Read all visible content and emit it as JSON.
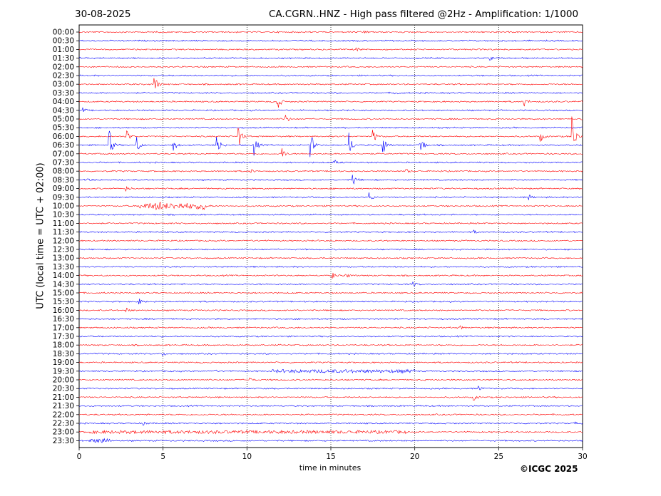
{
  "header": {
    "date": "30-08-2025",
    "title": "CA.CGRN..HNZ - High pass filtered @2Hz - Amplification: 1/1000"
  },
  "footer": {
    "copyright": "©ICGC 2025"
  },
  "chart_data": {
    "type": "line",
    "title": "CA.CGRN..HNZ - High pass filtered @2Hz - Amplification: 1/1000",
    "xlabel": "time in minutes",
    "ylabel": "UTC (local time = UTC + 02:00)",
    "xlim": [
      0,
      30
    ],
    "xticks": [
      0,
      5,
      10,
      15,
      20,
      25,
      30
    ],
    "vertical_dotted_gridlines_at": [
      5,
      10,
      15,
      20,
      25
    ],
    "colors": {
      "red": "#ff0000",
      "blue": "#0000ff"
    },
    "trace_color_order": [
      "red",
      "blue"
    ],
    "rows": [
      "00:00",
      "00:30",
      "01:00",
      "01:30",
      "02:00",
      "02:30",
      "03:00",
      "03:30",
      "04:00",
      "04:30",
      "05:00",
      "05:30",
      "06:00",
      "06:30",
      "07:00",
      "07:30",
      "08:00",
      "08:30",
      "09:00",
      "09:30",
      "10:00",
      "10:30",
      "11:00",
      "11:30",
      "12:00",
      "12:30",
      "13:00",
      "13:30",
      "14:00",
      "14:30",
      "15:00",
      "15:30",
      "16:00",
      "16:30",
      "17:00",
      "17:30",
      "18:00",
      "18:30",
      "19:00",
      "19:30",
      "20:00",
      "20:30",
      "21:00",
      "21:30",
      "22:00",
      "22:30",
      "23:00",
      "23:30"
    ],
    "events": [
      {
        "row": "00:00",
        "t": 17,
        "amp": 0.4
      },
      {
        "row": "01:00",
        "t": 16.5,
        "amp": 0.5
      },
      {
        "row": "01:30",
        "t": 24.5,
        "amp": 0.4
      },
      {
        "row": "03:00",
        "t": 4.5,
        "amp": 2.2
      },
      {
        "row": "03:30",
        "t": 18.8,
        "amp": 0.6
      },
      {
        "row": "04:00",
        "t": 26.5,
        "amp": 1.2
      },
      {
        "row": "04:00",
        "t": 11.8,
        "amp": 2.5
      },
      {
        "row": "04:30",
        "t": 0.2,
        "amp": 0.6
      },
      {
        "row": "05:00",
        "t": 12.3,
        "amp": 1.0
      },
      {
        "row": "06:00",
        "t": 2.8,
        "amp": 2.0
      },
      {
        "row": "06:00",
        "t": 9.5,
        "amp": 2.8
      },
      {
        "row": "06:00",
        "t": 17.5,
        "amp": 2.0
      },
      {
        "row": "06:00",
        "t": 27.5,
        "amp": 1.2
      },
      {
        "row": "06:30",
        "t": 1.8,
        "amp": 3.5
      },
      {
        "row": "06:30",
        "t": 3.4,
        "amp": 2.5
      },
      {
        "row": "06:30",
        "t": 5.6,
        "amp": 2.0
      },
      {
        "row": "06:30",
        "t": 8.2,
        "amp": 3.5
      },
      {
        "row": "06:30",
        "t": 10.4,
        "amp": 3.0
      },
      {
        "row": "06:30",
        "t": 13.8,
        "amp": 3.0
      },
      {
        "row": "06:30",
        "t": 16.1,
        "amp": 3.0
      },
      {
        "row": "06:30",
        "t": 18.1,
        "amp": 2.5
      },
      {
        "row": "06:30",
        "t": 20.3,
        "amp": 3.5
      },
      {
        "row": "06:00",
        "t": 29.4,
        "amp": 5.0
      },
      {
        "row": "07:00",
        "t": 12.1,
        "amp": 1.5
      },
      {
        "row": "07:30",
        "t": 15.2,
        "amp": 0.6
      },
      {
        "row": "08:00",
        "t": 10.2,
        "amp": 0.6
      },
      {
        "row": "08:00",
        "t": 19.5,
        "amp": 0.5
      },
      {
        "row": "08:30",
        "t": 0.5,
        "amp": 0.5
      },
      {
        "row": "08:30",
        "t": 16.3,
        "amp": 1.5
      },
      {
        "row": "09:00",
        "t": 2.8,
        "amp": 0.6
      },
      {
        "row": "09:30",
        "t": 17.3,
        "amp": 1.2
      },
      {
        "row": "09:30",
        "t": 26.8,
        "amp": 0.6
      },
      {
        "row": "10:00",
        "t": 4.6,
        "amp": 1.5
      },
      {
        "row": "10:00",
        "t": 7.4,
        "amp": 1.2
      },
      {
        "row": "11:30",
        "t": 23.5,
        "amp": 0.4
      },
      {
        "row": "14:00",
        "t": 15.1,
        "amp": 0.8
      },
      {
        "row": "14:00",
        "t": 15.9,
        "amp": 0.7
      },
      {
        "row": "14:30",
        "t": 19.9,
        "amp": 0.6
      },
      {
        "row": "15:30",
        "t": 3.6,
        "amp": 0.6
      },
      {
        "row": "16:00",
        "t": 2.8,
        "amp": 0.6
      },
      {
        "row": "17:00",
        "t": 22.7,
        "amp": 0.5
      },
      {
        "row": "18:30",
        "t": 5.0,
        "amp": 0.4
      },
      {
        "row": "19:30",
        "t": 8.0,
        "amp": 0.4
      },
      {
        "row": "20:00",
        "t": 10.2,
        "amp": 0.4
      },
      {
        "row": "20:30",
        "t": 23.8,
        "amp": 0.6
      },
      {
        "row": "21:00",
        "t": 23.5,
        "amp": 0.8
      },
      {
        "row": "22:30",
        "t": 3.8,
        "amp": 0.5
      },
      {
        "row": "22:30",
        "t": 29.5,
        "amp": 0.4
      },
      {
        "row": "23:30",
        "t": 1.4,
        "amp": 0.5
      }
    ],
    "noisy_segments": [
      {
        "row": "10:00",
        "t0": 3.6,
        "t1": 7.2,
        "amp": 0.55
      },
      {
        "row": "19:30",
        "t0": 11.5,
        "t1": 20.0,
        "amp": 0.25
      },
      {
        "row": "23:00",
        "t0": 0.5,
        "t1": 19.5,
        "amp": 0.22
      },
      {
        "row": "23:30",
        "t0": 0.6,
        "t1": 1.8,
        "amp": 0.3
      }
    ]
  }
}
